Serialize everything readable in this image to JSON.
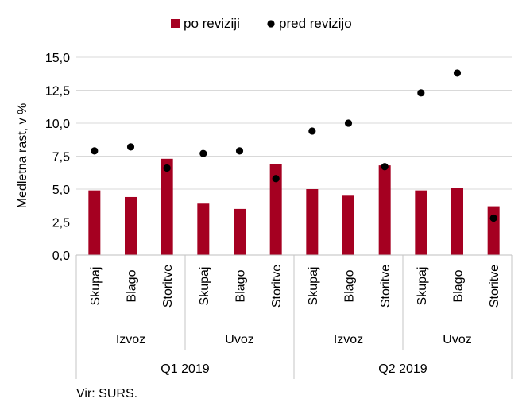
{
  "chart_data": {
    "type": "bar",
    "title": "",
    "ylabel": "Medletna rast, v %",
    "xlabel": "",
    "ylim": [
      0,
      15
    ],
    "yticks": [
      "0,0",
      "2,5",
      "5,0",
      "7,5",
      "10,0",
      "12,5",
      "15,0"
    ],
    "grid": true,
    "legend_position": "top",
    "categories": [
      "Skupaj",
      "Blago",
      "Storitve",
      "Skupaj",
      "Blago",
      "Storitve",
      "Skupaj",
      "Blago",
      "Storitve",
      "Skupaj",
      "Blago",
      "Storitve"
    ],
    "groups_level2": [
      {
        "label": "Izvoz",
        "span": 3
      },
      {
        "label": "Uvoz",
        "span": 3
      },
      {
        "label": "Izvoz",
        "span": 3
      },
      {
        "label": "Uvoz",
        "span": 3
      }
    ],
    "groups_level3": [
      {
        "label": "Q1 2019",
        "span": 6
      },
      {
        "label": "Q2 2019",
        "span": 6
      }
    ],
    "series": [
      {
        "name": "po reviziji",
        "type": "bar",
        "color": "#a50021",
        "values": [
          4.9,
          4.4,
          7.3,
          3.9,
          3.5,
          6.9,
          5.0,
          4.5,
          6.8,
          4.9,
          5.1,
          3.7
        ]
      },
      {
        "name": "pred revizijo",
        "type": "scatter",
        "color": "#000000",
        "values": [
          7.9,
          8.2,
          6.6,
          7.7,
          7.9,
          5.8,
          9.4,
          10.0,
          6.7,
          12.3,
          13.8,
          2.8
        ]
      }
    ]
  },
  "source": "Vir: SURS."
}
